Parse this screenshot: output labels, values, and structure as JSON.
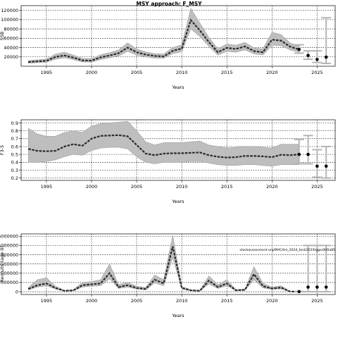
{
  "page": {
    "title": "MSY approach: F_MSY"
  },
  "chart_data": [
    {
      "type": "line",
      "xlabel": "Years",
      "ylabel": "SSB",
      "xlim": [
        1992.2,
        2027.0
      ],
      "ylim": [
        0,
        130000
      ],
      "xticks": [
        "1995",
        "2000",
        "2005",
        "2010",
        "2015",
        "2020",
        "2025"
      ],
      "yticks": [
        "20000",
        "40000",
        "60000",
        "80000",
        "100000",
        "120000"
      ],
      "grid": true,
      "series": [
        {
          "role": "estimate",
          "x": [
            1993,
            1994,
            1995,
            1996,
            1997,
            1998,
            1999,
            2000,
            2001,
            2002,
            2003,
            2004,
            2005,
            2006,
            2007,
            2008,
            2009,
            2010,
            2011,
            2012,
            2013,
            2014,
            2015,
            2016,
            2017,
            2018,
            2019,
            2020,
            2021,
            2022,
            2023
          ],
          "values": [
            9000,
            10500,
            11500,
            20000,
            23000,
            18500,
            12500,
            12000,
            19000,
            23000,
            28000,
            40000,
            30000,
            25000,
            22000,
            21000,
            33000,
            38000,
            99000,
            77000,
            52000,
            30000,
            39500,
            37000,
            42500,
            32500,
            30000,
            57000,
            55000,
            42000,
            36000
          ],
          "lower": [
            6500,
            7500,
            8500,
            15000,
            18000,
            14000,
            9000,
            9000,
            14500,
            18000,
            22000,
            32000,
            24000,
            20000,
            17500,
            17000,
            27000,
            31000,
            80000,
            64000,
            43000,
            24000,
            32000,
            30000,
            35000,
            26500,
            24000,
            45000,
            44000,
            35000,
            30000
          ],
          "upper": [
            12000,
            14000,
            15000,
            26000,
            30000,
            24000,
            17000,
            16000,
            24500,
            29000,
            35000,
            50000,
            37000,
            31000,
            27000,
            26000,
            40000,
            46000,
            124000,
            93000,
            62000,
            37000,
            48000,
            45000,
            51000,
            39500,
            37000,
            73000,
            68000,
            50000,
            42500
          ]
        }
      ],
      "forecast": [
        {
          "x": 2023,
          "y": 36000,
          "lower": 28000,
          "upper": 46000
        },
        {
          "x": 2024,
          "y": 23000,
          "lower": 15000,
          "upper": 33000
        },
        {
          "x": 2025,
          "y": 14500,
          "lower": 8000,
          "upper": 33000
        },
        {
          "x": 2026,
          "y": 19500,
          "lower": 6000,
          "upper": 104000
        }
      ]
    },
    {
      "type": "line",
      "xlabel": "Years",
      "ylabel": "F3-5",
      "xlim": [
        1992.2,
        2027.0
      ],
      "ylim": [
        0.17,
        0.94
      ],
      "xticks": [
        "1995",
        "2000",
        "2005",
        "2010",
        "2015",
        "2020",
        "2025"
      ],
      "yticks": [
        "0.2",
        "0.3",
        "0.4",
        "0.5",
        "0.6",
        "0.7",
        "0.8",
        "0.9"
      ],
      "grid": true,
      "series": [
        {
          "role": "estimate",
          "x": [
            1993,
            1994,
            1995,
            1996,
            1997,
            1998,
            1999,
            2000,
            2001,
            2002,
            2003,
            2004,
            2005,
            2006,
            2007,
            2008,
            2009,
            2010,
            2011,
            2012,
            2013,
            2014,
            2015,
            2016,
            2017,
            2018,
            2019,
            2020,
            2021,
            2022,
            2023
          ],
          "values": [
            0.57,
            0.545,
            0.54,
            0.545,
            0.6,
            0.63,
            0.61,
            0.7,
            0.735,
            0.74,
            0.745,
            0.73,
            0.62,
            0.51,
            0.49,
            0.51,
            0.515,
            0.515,
            0.52,
            0.525,
            0.49,
            0.47,
            0.46,
            0.465,
            0.48,
            0.48,
            0.475,
            0.465,
            0.495,
            0.49,
            0.5
          ],
          "lower": [
            0.4,
            0.4,
            0.41,
            0.43,
            0.47,
            0.5,
            0.49,
            0.55,
            0.58,
            0.59,
            0.59,
            0.57,
            0.47,
            0.4,
            0.38,
            0.4,
            0.4,
            0.4,
            0.41,
            0.41,
            0.39,
            0.37,
            0.36,
            0.36,
            0.37,
            0.37,
            0.36,
            0.35,
            0.37,
            0.37,
            0.37
          ],
          "upper": [
            0.83,
            0.76,
            0.73,
            0.73,
            0.78,
            0.8,
            0.78,
            0.86,
            0.89,
            0.9,
            0.91,
            0.92,
            0.8,
            0.66,
            0.62,
            0.65,
            0.65,
            0.65,
            0.66,
            0.67,
            0.62,
            0.6,
            0.58,
            0.59,
            0.6,
            0.6,
            0.59,
            0.58,
            0.63,
            0.63,
            0.63
          ]
        }
      ],
      "forecast": [
        {
          "x": 2023,
          "y": 0.5,
          "lower": 0.38,
          "upper": 0.69
        },
        {
          "x": 2024,
          "y": 0.5,
          "lower": 0.38,
          "upper": 0.74
        },
        {
          "x": 2025,
          "y": 0.35,
          "lower": 0.21,
          "upper": 0.56
        },
        {
          "x": 2026,
          "y": 0.35,
          "lower": 0.2,
          "upper": 0.6
        }
      ]
    },
    {
      "type": "line",
      "xlabel": "Years",
      "ylabel": "Recruits (age 0)",
      "xlim": [
        1992.2,
        2027.0
      ],
      "ylim": [
        -300000,
        6250000
      ],
      "xticks": [
        "1995",
        "2000",
        "2005",
        "2010",
        "2015",
        "2020",
        "2025"
      ],
      "yticks": [
        "0",
        "1000000",
        "2000000",
        "3000000",
        "4000000",
        "5000000",
        "6000000"
      ],
      "grid": true,
      "annotation": "stockassessment.org/MAC/tm_2024_test/2019/ggedit/0a85",
      "series": [
        {
          "role": "estimate",
          "x": [
            1993,
            1994,
            1995,
            1996,
            1997,
            1998,
            1999,
            2000,
            2001,
            2002,
            2003,
            2004,
            2005,
            2006,
            2007,
            2008,
            2009,
            2010,
            2011,
            2012,
            2013,
            2014,
            2015,
            2016,
            2017,
            2018,
            2019,
            2020,
            2021,
            2022,
            2023
          ],
          "values": [
            300000,
            700000,
            900000,
            400000,
            100000,
            150000,
            700000,
            800000,
            900000,
            2000000,
            500000,
            700000,
            400000,
            300000,
            1300000,
            900000,
            4900000,
            400000,
            150000,
            100000,
            1200000,
            500000,
            900000,
            150000,
            200000,
            1900000,
            600000,
            350000,
            450000,
            20000,
            10000
          ],
          "lower": [
            200000,
            500000,
            650000,
            300000,
            70000,
            100000,
            500000,
            600000,
            650000,
            1400000,
            350000,
            500000,
            280000,
            200000,
            950000,
            650000,
            3700000,
            300000,
            100000,
            70000,
            850000,
            350000,
            650000,
            100000,
            140000,
            1300000,
            420000,
            250000,
            300000,
            10000,
            5000
          ],
          "upper": [
            450000,
            1300000,
            1500000,
            600000,
            150000,
            220000,
            1000000,
            1100000,
            1300000,
            3000000,
            750000,
            1000000,
            600000,
            450000,
            1800000,
            1300000,
            6100000,
            550000,
            220000,
            150000,
            1700000,
            750000,
            1300000,
            230000,
            300000,
            2700000,
            900000,
            500000,
            650000,
            35000,
            20000
          ]
        }
      ],
      "forecast": [
        {
          "x": 2023,
          "y": 10000,
          "lower": 0,
          "upper": 30000
        },
        {
          "x": 2024,
          "y": 500000,
          "lower": 0,
          "upper": 5000000
        },
        {
          "x": 2025,
          "y": 500000,
          "lower": 0,
          "upper": 5000000
        },
        {
          "x": 2026,
          "y": 500000,
          "lower": 0,
          "upper": 5000000
        }
      ]
    }
  ]
}
